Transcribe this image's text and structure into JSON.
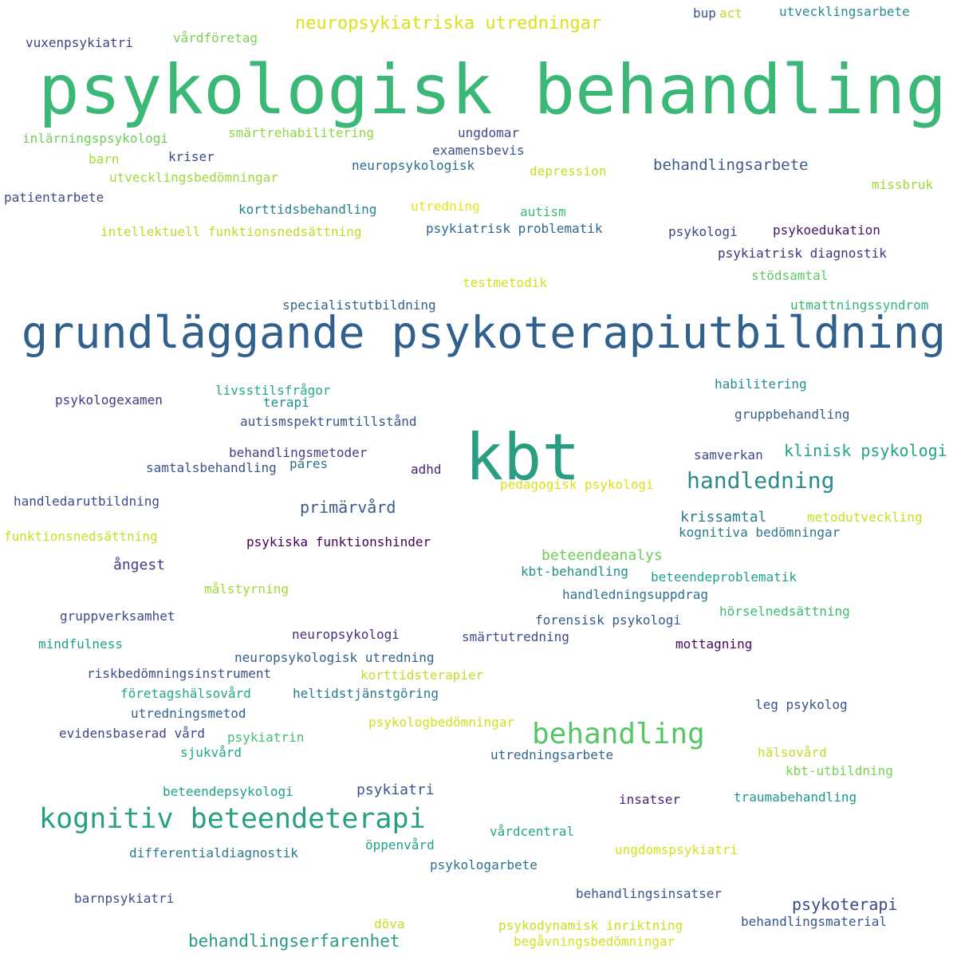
{
  "words": [
    {
      "text": "psykologisk behandling",
      "color": "#3bb877"
    },
    {
      "text": "grundläggande psykoterapiutbildning",
      "color": "#31608c"
    },
    {
      "text": "kbt",
      "color": "#2a9d83"
    },
    {
      "text": "behandling",
      "color": "#56c566"
    },
    {
      "text": "kognitiv beteendeterapi",
      "color": "#27a081"
    },
    {
      "text": "handledning",
      "color": "#2b8a8c"
    },
    {
      "text": "neuropsykiatriska utredningar",
      "color": "#d7e219"
    },
    {
      "text": "behandlingserfarenhet",
      "color": "#2a9a86"
    },
    {
      "text": "klinisk psykologi",
      "color": "#21a585"
    },
    {
      "text": "primärvård",
      "color": "#3a5a8c"
    },
    {
      "text": "psykoterapi",
      "color": "#3f4788"
    },
    {
      "text": "behandlingsarbete",
      "color": "#3b5c8b"
    },
    {
      "text": "krissamtal",
      "color": "#2b7d8e"
    },
    {
      "text": "ångest",
      "color": "#433d84"
    },
    {
      "text": "beteendeanalys",
      "color": "#6ccd5a"
    },
    {
      "text": "psykiatri",
      "color": "#3a5589"
    },
    {
      "text": "vuxenpsykiatri",
      "color": "#414487"
    },
    {
      "text": "vårdföretag",
      "color": "#7ad151"
    },
    {
      "text": "bup",
      "color": "#3b518b"
    },
    {
      "text": "act",
      "color": "#b5de2b"
    },
    {
      "text": "utvecklingsarbete",
      "color": "#2a8c8e"
    },
    {
      "text": "inlärningspsykologi",
      "color": "#6ece58"
    },
    {
      "text": "smärtrehabilitering",
      "color": "#8ed645"
    },
    {
      "text": "ungdomar",
      "color": "#3e4c8a"
    },
    {
      "text": "examensbevis",
      "color": "#3a548c"
    },
    {
      "text": "barn",
      "color": "#a5db36"
    },
    {
      "text": "kriser",
      "color": "#3f4889"
    },
    {
      "text": "neuropsykologisk",
      "color": "#2f6c8e"
    },
    {
      "text": "depression",
      "color": "#c2df23"
    },
    {
      "text": "utvecklingsbedömningar",
      "color": "#9fda3a"
    },
    {
      "text": "missbruk",
      "color": "#a2da37"
    },
    {
      "text": "patientarbete",
      "color": "#3e4a89"
    },
    {
      "text": "korttidsbehandling",
      "color": "#27808e"
    },
    {
      "text": "utredning",
      "color": "#e5e419"
    },
    {
      "text": "autism",
      "color": "#3dbc74"
    },
    {
      "text": "intellektuell funktionsnedsättning",
      "color": "#bade28"
    },
    {
      "text": "psykiatrisk problematik",
      "color": "#31668e"
    },
    {
      "text": "psykologi",
      "color": "#3f4788"
    },
    {
      "text": "psykoedukation",
      "color": "#471365"
    },
    {
      "text": "psykiatrisk diagnostik",
      "color": "#46317e"
    },
    {
      "text": "testmetodik",
      "color": "#d2e21b"
    },
    {
      "text": "stödsamtal",
      "color": "#5ec962"
    },
    {
      "text": "specialistutbildning",
      "color": "#33628d"
    },
    {
      "text": "utmattningssyndrom",
      "color": "#35b779"
    },
    {
      "text": "habilitering",
      "color": "#218f8d"
    },
    {
      "text": "livsstilsfrågor",
      "color": "#25ab82"
    },
    {
      "text": "psykologexamen",
      "color": "#453781"
    },
    {
      "text": "terapi",
      "color": "#21918c"
    },
    {
      "text": "gruppbehandling",
      "color": "#355f8d"
    },
    {
      "text": "autismspektrumtillstånd",
      "color": "#3b528b"
    },
    {
      "text": "behandlingsmetoder",
      "color": "#433e85"
    },
    {
      "text": "samverkan",
      "color": "#404588"
    },
    {
      "text": "samtalsbehandling",
      "color": "#3b518b"
    },
    {
      "text": "pares",
      "color": "#2c738e"
    },
    {
      "text": "adhd",
      "color": "#482475"
    },
    {
      "text": "pedagogisk psykologi",
      "color": "#d8e219"
    },
    {
      "text": "handledarutbildning",
      "color": "#3e4989"
    },
    {
      "text": "metodutveckling",
      "color": "#c8e020"
    },
    {
      "text": "kognitiva bedömningar",
      "color": "#2a788e"
    },
    {
      "text": "funktionsnedsättning",
      "color": "#c5e021"
    },
    {
      "text": "psykiska funktionshinder",
      "color": "#440154"
    },
    {
      "text": "kbt-behandling",
      "color": "#228c8d"
    },
    {
      "text": "beteendeproblematik",
      "color": "#20a486"
    },
    {
      "text": "målstyrning",
      "color": "#a0da39"
    },
    {
      "text": "handledningsuppdrag",
      "color": "#2d708e"
    },
    {
      "text": "gruppverksamhet",
      "color": "#3f4a8a"
    },
    {
      "text": "forensisk psykologi",
      "color": "#38598c"
    },
    {
      "text": "hörselnedsättning",
      "color": "#3cbb75"
    },
    {
      "text": "mindfulness",
      "color": "#1fa188"
    },
    {
      "text": "neuropsykologi",
      "color": "#472d7b"
    },
    {
      "text": "smärtutredning",
      "color": "#3e4c8a"
    },
    {
      "text": "mottagning",
      "color": "#46085c"
    },
    {
      "text": "neuropsykologisk utredning",
      "color": "#34618d"
    },
    {
      "text": "riskbedömningsinstrument",
      "color": "#3c4f8a"
    },
    {
      "text": "korttidsterapier",
      "color": "#bddf26"
    },
    {
      "text": "företagshälsovård",
      "color": "#22a884"
    },
    {
      "text": "heltidstjänstgöring",
      "color": "#29798e"
    },
    {
      "text": "utredningsmetod",
      "color": "#33638d"
    },
    {
      "text": "leg psykolog",
      "color": "#3a548c"
    },
    {
      "text": "evidensbaserad vård",
      "color": "#414487"
    },
    {
      "text": "psykiatrin",
      "color": "#44bf70"
    },
    {
      "text": "psykologbedömningar",
      "color": "#d0e11c"
    },
    {
      "text": "sjukvård",
      "color": "#22a785"
    },
    {
      "text": "utredningsarbete",
      "color": "#31668e"
    },
    {
      "text": "hälsovård",
      "color": "#c2df23"
    },
    {
      "text": "kbt-utbildning",
      "color": "#7ad151"
    },
    {
      "text": "beteendepsykologi",
      "color": "#1fa187"
    },
    {
      "text": "insatser",
      "color": "#482576"
    },
    {
      "text": "traumabehandling",
      "color": "#1f968b"
    },
    {
      "text": "vårdcentral",
      "color": "#22a884"
    },
    {
      "text": "öppenvård",
      "color": "#20a486"
    },
    {
      "text": "differentialdiagnostik",
      "color": "#29798e"
    },
    {
      "text": "ungdomspsykiatri",
      "color": "#d5e21a"
    },
    {
      "text": "psykologarbete",
      "color": "#2c728e"
    },
    {
      "text": "behandlingsinsatser",
      "color": "#3b528b"
    },
    {
      "text": "barnpsykiatri",
      "color": "#3d4e8a"
    },
    {
      "text": "döva",
      "color": "#c2df23"
    },
    {
      "text": "psykodynamisk inriktning",
      "color": "#c8e020"
    },
    {
      "text": "behandlingsmaterial",
      "color": "#39568c"
    },
    {
      "text": "begåvningsbedömningar",
      "color": "#d2e21b"
    }
  ]
}
